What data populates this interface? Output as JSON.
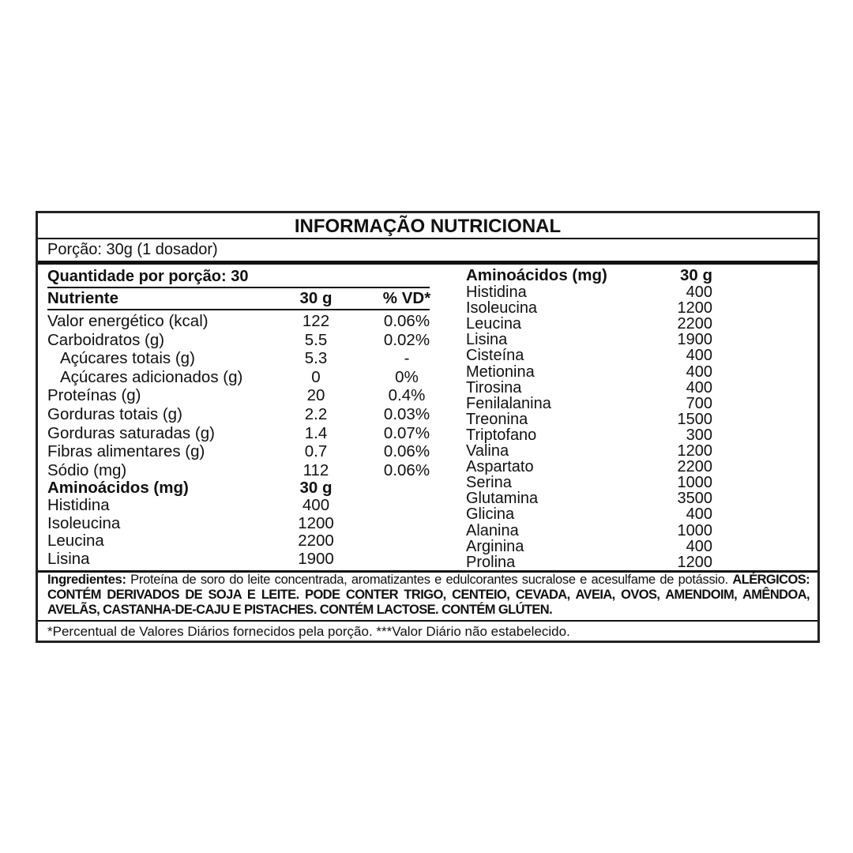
{
  "title": "INFORMAÇÃO NUTRICIONAL",
  "portion": "Porção: 30g (1 dosador)",
  "quantity_per_portion": "Quantidade por porção: 30",
  "table_header": {
    "nutrient": "Nutriente",
    "amount": "30 g",
    "dv": "% VD*"
  },
  "nutrients": [
    {
      "name": "Valor energético (kcal)",
      "amount": "122",
      "dv": "0.06%",
      "indent": false
    },
    {
      "name": "Carboidratos (g)",
      "amount": "5.5",
      "dv": "0.02%",
      "indent": false
    },
    {
      "name": "Açúcares totais (g)",
      "amount": "5.3",
      "dv": "-",
      "indent": true
    },
    {
      "name": "Açúcares adicionados (g)",
      "amount": "0",
      "dv": "0%",
      "indent": true
    },
    {
      "name": "Proteínas (g)",
      "amount": "20",
      "dv": "0.4%",
      "indent": false
    },
    {
      "name": "Gorduras totais (g)",
      "amount": "2.2",
      "dv": "0.03%",
      "indent": false
    },
    {
      "name": "Gorduras saturadas (g)",
      "amount": "1.4",
      "dv": "0.07%",
      "indent": false
    },
    {
      "name": "Fibras alimentares (g)",
      "amount": "0.7",
      "dv": "0.06%",
      "indent": false
    },
    {
      "name": "Sódio (mg)",
      "amount": "112",
      "dv": "0.06%",
      "indent": false
    }
  ],
  "amino_left": {
    "header": {
      "name": "Aminoácidos (mg)",
      "amount": "30 g"
    },
    "items": [
      {
        "name": "Histidina",
        "amount": "400"
      },
      {
        "name": "Isoleucina",
        "amount": "1200"
      },
      {
        "name": "Leucina",
        "amount": "2200"
      },
      {
        "name": "Lisina",
        "amount": "1900"
      }
    ]
  },
  "amino_right": {
    "header": {
      "name": "Aminoácidos (mg)",
      "amount": "30 g"
    },
    "items": [
      {
        "name": "Histidina",
        "amount": "400"
      },
      {
        "name": "Isoleucina",
        "amount": "1200"
      },
      {
        "name": "Leucina",
        "amount": "2200"
      },
      {
        "name": "Lisina",
        "amount": "1900"
      },
      {
        "name": "Cisteína",
        "amount": "400"
      },
      {
        "name": "Metionina",
        "amount": "400"
      },
      {
        "name": "Tirosina",
        "amount": "400"
      },
      {
        "name": "Fenilalanina",
        "amount": "700"
      },
      {
        "name": "Treonina",
        "amount": "1500"
      },
      {
        "name": "Triptofano",
        "amount": "300"
      },
      {
        "name": "Valina",
        "amount": "1200"
      },
      {
        "name": "Aspartato",
        "amount": "2200"
      },
      {
        "name": "Serina",
        "amount": "1000"
      },
      {
        "name": "Glutamina",
        "amount": "3500"
      },
      {
        "name": "Glicina",
        "amount": "400"
      },
      {
        "name": "Alanina",
        "amount": "1000"
      },
      {
        "name": "Arginina",
        "amount": "400"
      },
      {
        "name": "Prolina",
        "amount": "1200"
      }
    ]
  },
  "ingredients": {
    "label": "Ingredientes:",
    "text": " Proteína de soro do leite concentrada, aromatizantes e edulcorantes sucralose e acesulfame de potássio. ",
    "allergens": "ALÉRGICOS: CONTÉM DERIVADOS DE SOJA E LEITE. PODE CONTER TRIGO, CENTEIO, CEVADA, AVEIA, OVOS, AMENDOIM, AMÊNDOA, AVELÃS, CASTANHA-DE-CAJU E PISTACHES. CONTÉM LACTOSE. CONTÉM GLÚTEN."
  },
  "footnote": "*Percentual de Valores Diários fornecidos pela porção. ***Valor Diário não estabelecido."
}
